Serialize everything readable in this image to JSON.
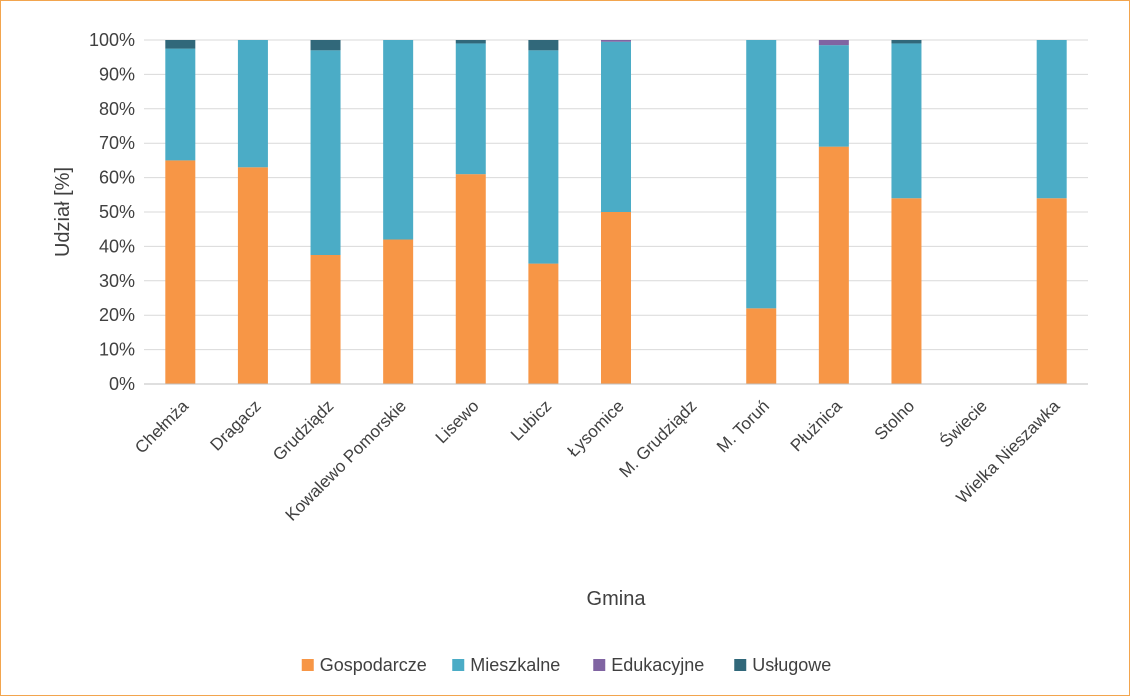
{
  "chart_data": {
    "type": "bar",
    "stacked": true,
    "categories": [
      "Chełmża",
      "Dragacz",
      "Grudziądz",
      "Kowalewo Pomorskie",
      "Lisewo",
      "Lubicz",
      "Łysomice",
      "M. Grudziądz",
      "M. Toruń",
      "Płużnica",
      "Stolno",
      "Świecie",
      "Wielka Nieszawka"
    ],
    "series": [
      {
        "name": "Gospodarcze",
        "color": "#F79646",
        "values": [
          65,
          63,
          37.5,
          42,
          61,
          35,
          50,
          0,
          22,
          69,
          54,
          0,
          54
        ]
      },
      {
        "name": "Mieszkalne",
        "color": "#4BACC6",
        "values": [
          32.5,
          37,
          59.5,
          58,
          38,
          62,
          49.5,
          0,
          78,
          29.5,
          45,
          0,
          46
        ]
      },
      {
        "name": "Edukacyjne",
        "color": "#8064A2",
        "values": [
          0,
          0,
          0,
          0,
          0,
          0,
          0.5,
          0,
          0,
          1.5,
          0,
          0,
          0
        ]
      },
      {
        "name": "Usługowe",
        "color": "#31687A",
        "values": [
          2.5,
          0,
          3,
          0,
          1,
          3,
          0,
          0,
          0,
          0,
          1,
          0,
          0
        ]
      }
    ],
    "ylim": [
      0,
      100
    ],
    "yticks": [
      "0%",
      "10%",
      "20%",
      "30%",
      "40%",
      "50%",
      "60%",
      "70%",
      "80%",
      "90%",
      "100%"
    ],
    "xlabel": "Gmina",
    "ylabel": "Udział [%]",
    "grid": true,
    "legend_position": "bottom"
  }
}
